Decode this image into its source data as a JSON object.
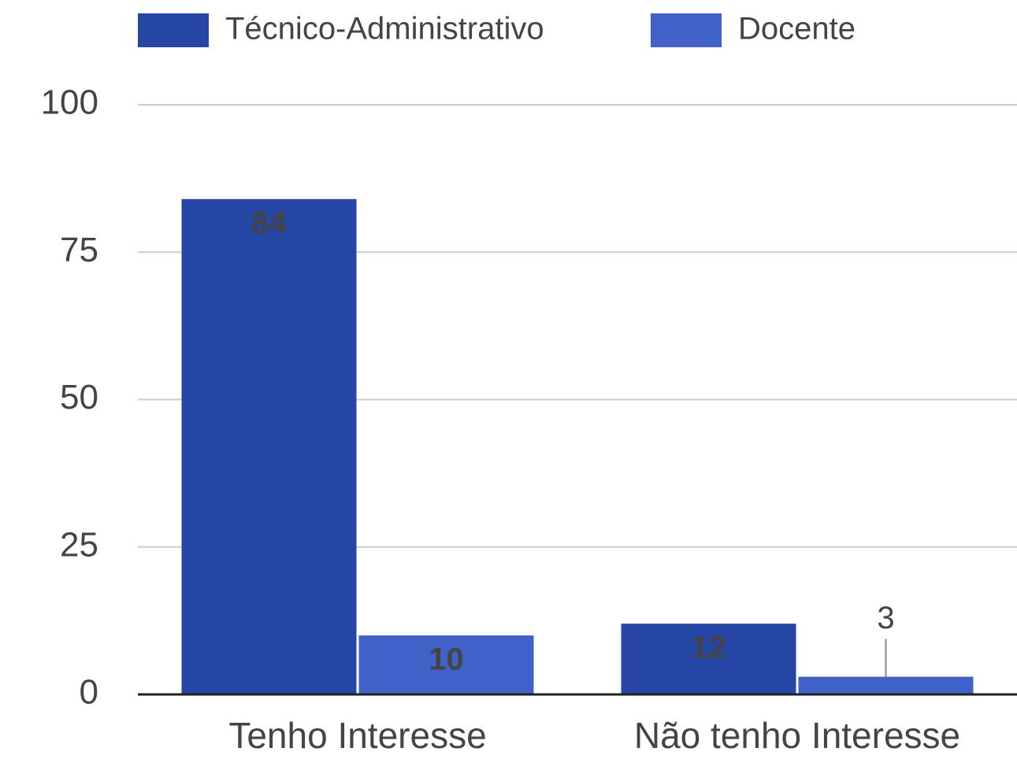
{
  "chart_data": {
    "type": "bar",
    "categories": [
      "Tenho Interesse",
      "Não tenho Interesse"
    ],
    "series": [
      {
        "name": "Técnico-Administrativo",
        "color": "#2646a6",
        "values": [
          84,
          12
        ]
      },
      {
        "name": "Docente",
        "color": "#3f61c8",
        "values": [
          10,
          3
        ]
      }
    ],
    "ylim": [
      0,
      100
    ],
    "yticks": [
      0,
      25,
      50,
      75,
      100
    ],
    "grid": true,
    "legend": "top"
  }
}
